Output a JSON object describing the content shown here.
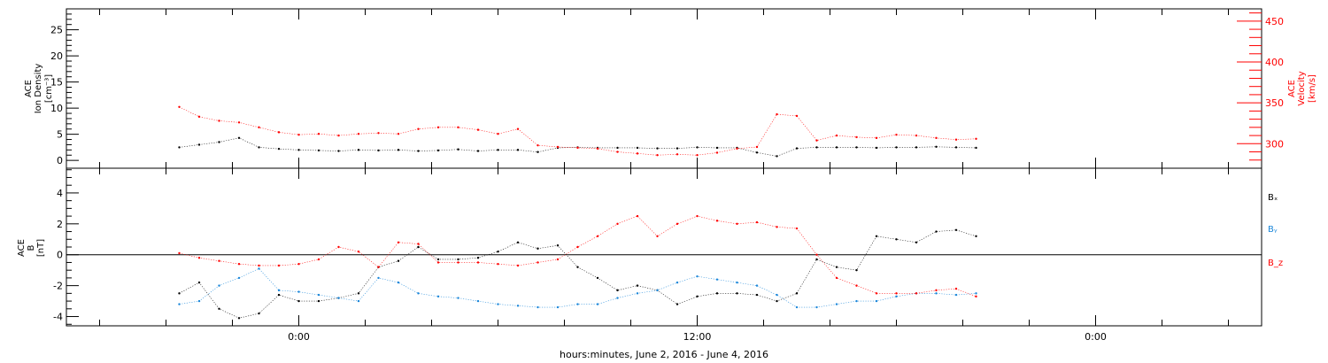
{
  "chart_data": [
    {
      "type": "scatter",
      "panel": "top",
      "ylabel_left": [
        "ACE",
        "Ion Density",
        "[cm⁻³]"
      ],
      "ylabel_right": [
        "ACE",
        "Velocity",
        "[km/s]"
      ],
      "ylim_left": [
        -1.5,
        29
      ],
      "ylim_right": [
        270,
        465
      ],
      "yticks_left": [
        0,
        5,
        10,
        15,
        20,
        25
      ],
      "yticks_right": [
        300,
        350,
        400,
        450
      ],
      "colors": {
        "density": "#000000",
        "velocity": "#ff0000"
      },
      "series": [
        {
          "axis": "left",
          "color": "#000000",
          "x": [
            -3.6,
            -3.0,
            -2.4,
            -1.8,
            -1.2,
            -0.6,
            0.0,
            0.6,
            1.2,
            1.8,
            2.4,
            3.0,
            3.6,
            4.2,
            4.8,
            5.4,
            6.0,
            6.6,
            7.2,
            7.8,
            8.4,
            9.0,
            9.6,
            10.2,
            10.8,
            11.4,
            12.0,
            12.6,
            13.2,
            13.8,
            14.4,
            15.0,
            15.6,
            16.2,
            16.8,
            17.4,
            18.0,
            18.6,
            19.2,
            19.8,
            20.4
          ],
          "y": [
            2.5,
            3.0,
            3.5,
            4.3,
            2.5,
            2.2,
            2.0,
            1.9,
            1.8,
            2.0,
            1.9,
            2.0,
            1.8,
            1.9,
            2.1,
            1.8,
            2.0,
            2.0,
            1.6,
            2.4,
            2.5,
            2.4,
            2.4,
            2.4,
            2.3,
            2.3,
            2.5,
            2.4,
            2.4,
            1.5,
            0.8,
            2.3,
            2.5,
            2.5,
            2.5,
            2.4,
            2.5,
            2.5,
            2.6,
            2.5,
            2.4
          ]
        },
        {
          "axis": "right",
          "color": "#ff0000",
          "x": [
            -3.6,
            -3.0,
            -2.4,
            -1.8,
            -1.2,
            -0.6,
            0.0,
            0.6,
            1.2,
            1.8,
            2.4,
            3.0,
            3.6,
            4.2,
            4.8,
            5.4,
            6.0,
            6.6,
            7.2,
            7.8,
            8.4,
            9.0,
            9.6,
            10.2,
            10.8,
            11.4,
            12.0,
            12.6,
            13.2,
            13.8,
            14.4,
            15.0,
            15.6,
            16.2,
            16.8,
            17.4,
            18.0,
            18.6,
            19.2,
            19.8,
            20.4
          ],
          "y": [
            345,
            333,
            328,
            326,
            320,
            314,
            311,
            312,
            310,
            312,
            313,
            312,
            318,
            320,
            320,
            317,
            312,
            318,
            298,
            296,
            295,
            294,
            290,
            288,
            286,
            287,
            286,
            289,
            294,
            296,
            336,
            334,
            304,
            310,
            308,
            307,
            311,
            310,
            307,
            305,
            306
          ]
        }
      ]
    },
    {
      "type": "scatter",
      "panel": "bottom",
      "ylabel_left": [
        "ACE",
        "B",
        "[nT]"
      ],
      "ylim": [
        -4.6,
        5.6
      ],
      "yticks": [
        -4,
        -2,
        0,
        2,
        4
      ],
      "legend": [
        {
          "name": "Bₓ",
          "color": "#000000"
        },
        {
          "name": "Bᵧ",
          "color": "#1a86d9"
        },
        {
          "name": "B_z",
          "color": "#ff0000"
        }
      ],
      "legend_position": "right, outside",
      "series": [
        {
          "name": "Bx",
          "color": "#000000",
          "x": [
            -3.6,
            -3.0,
            -2.4,
            -1.8,
            -1.2,
            -0.6,
            0.0,
            0.6,
            1.2,
            1.8,
            2.4,
            3.0,
            3.6,
            4.2,
            4.8,
            5.4,
            6.0,
            6.6,
            7.2,
            7.8,
            8.4,
            9.0,
            9.6,
            10.2,
            10.8,
            11.4,
            12.0,
            12.6,
            13.2,
            13.8,
            14.4,
            15.0,
            15.6,
            16.2,
            16.8,
            17.4,
            18.0,
            18.6,
            19.2,
            19.8,
            20.4
          ],
          "y": [
            -2.5,
            -1.8,
            -3.5,
            -4.1,
            -3.8,
            -2.6,
            -3.0,
            -3.0,
            -2.8,
            -2.5,
            -0.8,
            -0.4,
            0.5,
            -0.3,
            -0.3,
            -0.2,
            0.2,
            0.8,
            0.4,
            0.6,
            -0.8,
            -1.5,
            -2.3,
            -2.0,
            -2.3,
            -3.2,
            -2.7,
            -2.5,
            -2.5,
            -2.6,
            -3.0,
            -2.5,
            -0.3,
            -0.8,
            -1.0,
            1.2,
            1.0,
            0.8,
            1.5,
            1.6,
            1.2
          ]
        },
        {
          "name": "By",
          "color": "#1a86d9",
          "x": [
            -3.6,
            -3.0,
            -2.4,
            -1.8,
            -1.2,
            -0.6,
            0.0,
            0.6,
            1.2,
            1.8,
            2.4,
            3.0,
            3.6,
            4.2,
            4.8,
            5.4,
            6.0,
            6.6,
            7.2,
            7.8,
            8.4,
            9.0,
            9.6,
            10.2,
            10.8,
            11.4,
            12.0,
            12.6,
            13.2,
            13.8,
            14.4,
            15.0,
            15.6,
            16.2,
            16.8,
            17.4,
            18.0,
            18.6,
            19.2,
            19.8,
            20.4
          ],
          "y": [
            -3.2,
            -3.0,
            -2.0,
            -1.5,
            -0.9,
            -2.3,
            -2.4,
            -2.6,
            -2.8,
            -3.0,
            -1.5,
            -1.8,
            -2.5,
            -2.7,
            -2.8,
            -3.0,
            -3.2,
            -3.3,
            -3.4,
            -3.4,
            -3.2,
            -3.2,
            -2.8,
            -2.5,
            -2.3,
            -1.8,
            -1.4,
            -1.6,
            -1.8,
            -2.0,
            -2.6,
            -3.4,
            -3.4,
            -3.2,
            -3.0,
            -3.0,
            -2.7,
            -2.5,
            -2.5,
            -2.6,
            -2.5
          ]
        },
        {
          "name": "Bz",
          "color": "#ff0000",
          "x": [
            -3.6,
            -3.0,
            -2.4,
            -1.8,
            -1.2,
            -0.6,
            0.0,
            0.6,
            1.2,
            1.8,
            2.4,
            3.0,
            3.6,
            4.2,
            4.8,
            5.4,
            6.0,
            6.6,
            7.2,
            7.8,
            8.4,
            9.0,
            9.6,
            10.2,
            10.8,
            11.4,
            12.0,
            12.6,
            13.2,
            13.8,
            14.4,
            15.0,
            15.6,
            16.2,
            16.8,
            17.4,
            18.0,
            18.6,
            19.2,
            19.8,
            20.4
          ],
          "y": [
            0.1,
            -0.2,
            -0.4,
            -0.6,
            -0.7,
            -0.7,
            -0.6,
            -0.3,
            0.5,
            0.2,
            -0.8,
            0.8,
            0.7,
            -0.5,
            -0.5,
            -0.5,
            -0.6,
            -0.7,
            -0.5,
            -0.3,
            0.5,
            1.2,
            2.0,
            2.5,
            1.2,
            2.0,
            2.5,
            2.2,
            2.0,
            2.1,
            1.8,
            1.7,
            0.0,
            -1.5,
            -2.0,
            -2.5,
            -2.5,
            -2.5,
            -2.3,
            -2.2,
            -2.7
          ]
        }
      ]
    }
  ],
  "x_axis": {
    "title": "hours:minutes, June  2, 2016 - June  4, 2016",
    "xlim": [
      -7.0,
      29.0
    ],
    "ticks": [
      {
        "value": 0,
        "label": "0:00"
      },
      {
        "value": 12,
        "label": "12:00"
      },
      {
        "value": 24,
        "label": "0:00"
      }
    ],
    "minor_ticks": [
      -6,
      -4,
      -2,
      2,
      4,
      6,
      8,
      10,
      14,
      16,
      18,
      20,
      22,
      26,
      28
    ]
  },
  "colors": {
    "axes": "#000000",
    "density": "#000000",
    "velocity": "#ff0000",
    "bx": "#000000",
    "by": "#1a86d9",
    "bz": "#ff0000"
  }
}
